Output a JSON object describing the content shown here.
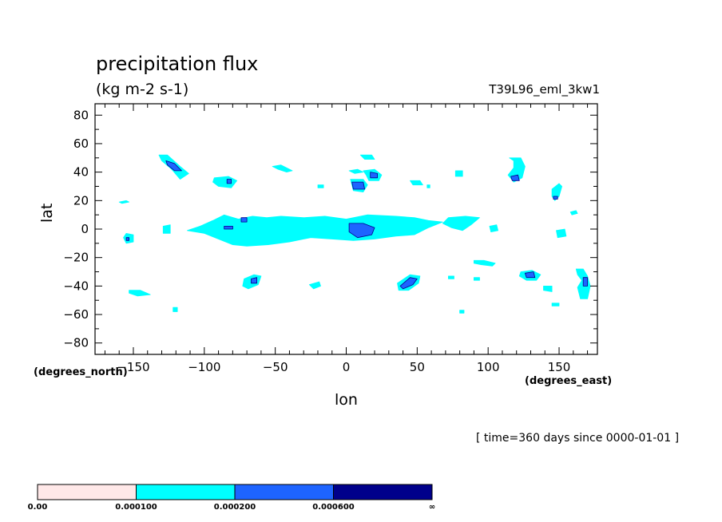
{
  "figure": {
    "title": "precipitation flux",
    "units": "(kg m-2 s-1)",
    "run_label": "T39L96_eml_3kw1",
    "time_label": "[ time=360 days since 0000-01-01 ]",
    "x_coord_name": "(degrees_east)",
    "y_coord_name": "(degrees_north)",
    "colors": {
      "background": "#ffffff",
      "axis": "#000000"
    }
  },
  "chart_data": {
    "type": "heatmap",
    "title": "precipitation flux",
    "subtitle": "(kg m-2 s-1)",
    "xlabel": "lon",
    "ylabel": "lat",
    "xlim": [
      -177,
      177
    ],
    "ylim": [
      -88,
      88
    ],
    "x_ticks": [
      -150,
      -100,
      -50,
      0,
      50,
      100,
      150
    ],
    "x_tick_labels": [
      "−150",
      "−100",
      "−50",
      "0",
      "50",
      "100",
      "150"
    ],
    "y_ticks": [
      80,
      60,
      40,
      20,
      0,
      -20,
      -40,
      -60,
      -80
    ],
    "y_tick_labels": [
      "80",
      "60",
      "40",
      "20",
      "0",
      "−20",
      "−40",
      "−60",
      "−80"
    ],
    "grid": false,
    "colorbar": {
      "levels": [
        0.0,
        0.0001,
        0.0002,
        0.0006
      ],
      "labels": [
        "0.00",
        "0.000100",
        "0.000200",
        "0.000600",
        "∞"
      ],
      "colors": [
        "#ffe8e8",
        "#00ffff",
        "#1e64ff",
        "#00008b"
      ]
    },
    "regions_level1": [
      {
        "name": "pacific-west-blob",
        "points": [
          [
            -155,
            -3
          ],
          [
            -150,
            -4
          ],
          [
            -150,
            -9
          ],
          [
            -155,
            -10
          ],
          [
            -157,
            -6
          ]
        ]
      },
      {
        "name": "hawaii-streak",
        "points": [
          [
            -160,
            19
          ],
          [
            -155,
            20
          ],
          [
            -153,
            19
          ],
          [
            -158,
            18
          ]
        ]
      },
      {
        "name": "central-pacific-spot",
        "points": [
          [
            -129,
            2
          ],
          [
            -124,
            3
          ],
          [
            -124,
            -3
          ],
          [
            -129,
            -3
          ]
        ]
      },
      {
        "name": "north-pacific-storm",
        "points": [
          [
            -132,
            52
          ],
          [
            -126,
            52
          ],
          [
            -117,
            44
          ],
          [
            -111,
            39
          ],
          [
            -117,
            35
          ],
          [
            -123,
            42
          ],
          [
            -130,
            48
          ]
        ]
      },
      {
        "name": "south-pacific-streak",
        "points": [
          [
            -153,
            -43
          ],
          [
            -145,
            -43
          ],
          [
            -138,
            -46
          ],
          [
            -147,
            -47
          ],
          [
            -153,
            -45
          ]
        ]
      },
      {
        "name": "south-pacific-dot",
        "points": [
          [
            -122,
            -55
          ],
          [
            -119,
            -55
          ],
          [
            -119,
            -58
          ],
          [
            -122,
            -58
          ]
        ]
      },
      {
        "name": "north-america-ring",
        "points": [
          [
            -93,
            36
          ],
          [
            -83,
            37
          ],
          [
            -77,
            34
          ],
          [
            -81,
            29
          ],
          [
            -90,
            30
          ],
          [
            -94,
            33
          ]
        ]
      },
      {
        "name": "south-america-ring",
        "points": [
          [
            -72,
            -35
          ],
          [
            -65,
            -32
          ],
          [
            -60,
            -33
          ],
          [
            -62,
            -39
          ],
          [
            -69,
            -42
          ],
          [
            -73,
            -40
          ]
        ]
      },
      {
        "name": "south-atlantic-west",
        "points": [
          [
            -26,
            -39
          ],
          [
            -19,
            -37
          ],
          [
            -18,
            -40
          ],
          [
            -23,
            -42
          ]
        ]
      },
      {
        "name": "north-atlantic-streak",
        "points": [
          [
            -52,
            44
          ],
          [
            -46,
            45
          ],
          [
            -38,
            41
          ],
          [
            -42,
            40
          ],
          [
            -48,
            42
          ]
        ]
      },
      {
        "name": "atlantic-dot",
        "points": [
          [
            -20,
            31
          ],
          [
            -16,
            31
          ],
          [
            -16,
            29
          ],
          [
            -20,
            29
          ]
        ]
      },
      {
        "name": "equatorial-band",
        "points": [
          [
            -112,
            -1
          ],
          [
            -103,
            2
          ],
          [
            -94,
            6
          ],
          [
            -86,
            10
          ],
          [
            -76,
            7
          ],
          [
            -66,
            9
          ],
          [
            -56,
            8
          ],
          [
            -46,
            9
          ],
          [
            -30,
            8
          ],
          [
            -15,
            9
          ],
          [
            0,
            7
          ],
          [
            15,
            10
          ],
          [
            35,
            9
          ],
          [
            48,
            8
          ],
          [
            58,
            6
          ],
          [
            68,
            5
          ],
          [
            58,
            1
          ],
          [
            48,
            -4
          ],
          [
            35,
            -5
          ],
          [
            20,
            -7
          ],
          [
            5,
            -8
          ],
          [
            -10,
            -7
          ],
          [
            -25,
            -6
          ],
          [
            -40,
            -9
          ],
          [
            -55,
            -11
          ],
          [
            -70,
            -12
          ],
          [
            -80,
            -11
          ],
          [
            -90,
            -7
          ],
          [
            -100,
            -3
          ]
        ]
      },
      {
        "name": "indian-band",
        "points": [
          [
            72,
            8
          ],
          [
            84,
            9
          ],
          [
            94,
            8
          ],
          [
            88,
            3
          ],
          [
            82,
            -1
          ],
          [
            74,
            1
          ],
          [
            68,
            4
          ]
        ]
      },
      {
        "name": "indian-east",
        "points": [
          [
            101,
            2
          ],
          [
            106,
            3
          ],
          [
            107,
            -1
          ],
          [
            102,
            -2
          ]
        ]
      },
      {
        "name": "europe-spot",
        "points": [
          [
            10,
            52
          ],
          [
            18,
            52
          ],
          [
            20,
            49
          ],
          [
            13,
            49
          ]
        ]
      },
      {
        "name": "europe-ring-a",
        "points": [
          [
            2,
            41
          ],
          [
            8,
            42
          ],
          [
            12,
            40
          ],
          [
            6,
            39
          ]
        ]
      },
      {
        "name": "europe-ring-b",
        "points": [
          [
            12,
            41
          ],
          [
            20,
            42
          ],
          [
            25,
            38
          ],
          [
            23,
            34
          ],
          [
            16,
            34
          ],
          [
            14,
            38
          ]
        ]
      },
      {
        "name": "mediterranean-ring",
        "points": [
          [
            3,
            35
          ],
          [
            12,
            35
          ],
          [
            15,
            31
          ],
          [
            12,
            26
          ],
          [
            5,
            27
          ]
        ]
      },
      {
        "name": "arabian-spot",
        "points": [
          [
            45,
            34
          ],
          [
            52,
            34
          ],
          [
            54,
            31
          ],
          [
            47,
            31
          ]
        ]
      },
      {
        "name": "arabian-dot",
        "points": [
          [
            57,
            31
          ],
          [
            59,
            31
          ],
          [
            59,
            29
          ],
          [
            57,
            29
          ]
        ]
      },
      {
        "name": "central-asia-dot",
        "points": [
          [
            77,
            41
          ],
          [
            82,
            41
          ],
          [
            82,
            37
          ],
          [
            77,
            37
          ]
        ]
      },
      {
        "name": "east-asia-hook",
        "points": [
          [
            115,
            50
          ],
          [
            123,
            50
          ],
          [
            126,
            44
          ],
          [
            124,
            36
          ],
          [
            118,
            33
          ],
          [
            114,
            38
          ],
          [
            118,
            43
          ],
          [
            118,
            48
          ]
        ]
      },
      {
        "name": "north-pacific-east-hook",
        "points": [
          [
            145,
            28
          ],
          [
            150,
            32
          ],
          [
            152,
            30
          ],
          [
            150,
            23
          ],
          [
            147,
            20
          ],
          [
            145,
            23
          ]
        ]
      },
      {
        "name": "maritime-dot",
        "points": [
          [
            158,
            12
          ],
          [
            162,
            13
          ],
          [
            163,
            11
          ],
          [
            159,
            10
          ]
        ]
      },
      {
        "name": "south-pacific-east-hook",
        "points": [
          [
            162,
            -28
          ],
          [
            167,
            -28
          ],
          [
            170,
            -33
          ],
          [
            172,
            -40
          ],
          [
            170,
            -49
          ],
          [
            165,
            -49
          ],
          [
            163,
            -41
          ],
          [
            166,
            -36
          ],
          [
            163,
            -32
          ]
        ]
      },
      {
        "name": "australia-ring",
        "points": [
          [
            123,
            -30
          ],
          [
            131,
            -29
          ],
          [
            137,
            -32
          ],
          [
            134,
            -36
          ],
          [
            127,
            -36
          ],
          [
            122,
            -33
          ]
        ]
      },
      {
        "name": "south-indian-streak",
        "points": [
          [
            90,
            -22
          ],
          [
            97,
            -22
          ],
          [
            105,
            -24
          ],
          [
            103,
            -26
          ],
          [
            95,
            -25
          ],
          [
            90,
            -24
          ]
        ]
      },
      {
        "name": "south-indian-dot",
        "points": [
          [
            90,
            -34
          ],
          [
            94,
            -34
          ],
          [
            94,
            -36
          ],
          [
            90,
            -36
          ]
        ]
      },
      {
        "name": "tasman-spot",
        "points": [
          [
            139,
            -40
          ],
          [
            145,
            -40
          ],
          [
            145,
            -44
          ],
          [
            139,
            -43
          ]
        ]
      },
      {
        "name": "south-atlantic-ring",
        "points": [
          [
            36,
            -38
          ],
          [
            45,
            -32
          ],
          [
            52,
            -33
          ],
          [
            51,
            -38
          ],
          [
            44,
            -43
          ],
          [
            37,
            -43
          ]
        ]
      },
      {
        "name": "south-atlantic-dot",
        "points": [
          [
            72,
            -33
          ],
          [
            76,
            -33
          ],
          [
            76,
            -35
          ],
          [
            72,
            -35
          ]
        ]
      },
      {
        "name": "southern-dot",
        "points": [
          [
            80,
            -57
          ],
          [
            83,
            -57
          ],
          [
            83,
            -59
          ],
          [
            80,
            -59
          ]
        ]
      },
      {
        "name": "west-pacific-dot",
        "points": [
          [
            148,
            -1
          ],
          [
            154,
            0
          ],
          [
            155,
            -5
          ],
          [
            149,
            -6
          ]
        ]
      },
      {
        "name": "east-pacific-dot",
        "points": [
          [
            145,
            -52
          ],
          [
            150,
            -52
          ],
          [
            150,
            -54
          ],
          [
            145,
            -54
          ]
        ]
      }
    ],
    "regions_level2": [
      {
        "name": "pacific-west-core",
        "points": [
          [
            -155,
            -6
          ],
          [
            -153,
            -6
          ],
          [
            -153,
            -8
          ],
          [
            -155,
            -8
          ]
        ]
      },
      {
        "name": "north-pacific-core",
        "points": [
          [
            -127,
            48
          ],
          [
            -121,
            46
          ],
          [
            -116,
            41
          ],
          [
            -121,
            41
          ],
          [
            -126,
            45
          ]
        ]
      },
      {
        "name": "north-america-core",
        "points": [
          [
            -84,
            35
          ],
          [
            -81,
            35
          ],
          [
            -81,
            32
          ],
          [
            -84,
            32
          ]
        ]
      },
      {
        "name": "south-america-core",
        "points": [
          [
            -67,
            -35
          ],
          [
            -63,
            -34
          ],
          [
            -63,
            -38
          ],
          [
            -67,
            -38
          ]
        ]
      },
      {
        "name": "equatorial-core-a",
        "points": [
          [
            -86,
            2
          ],
          [
            -80,
            2
          ],
          [
            -80,
            0
          ],
          [
            -86,
            0
          ]
        ]
      },
      {
        "name": "equatorial-core-b",
        "points": [
          [
            -74,
            8
          ],
          [
            -70,
            8
          ],
          [
            -70,
            5
          ],
          [
            -74,
            5
          ]
        ]
      },
      {
        "name": "equatorial-core-c",
        "points": [
          [
            2,
            4
          ],
          [
            12,
            4
          ],
          [
            20,
            1
          ],
          [
            18,
            -4
          ],
          [
            8,
            -6
          ],
          [
            2,
            -2
          ]
        ]
      },
      {
        "name": "mediterranean-core",
        "points": [
          [
            4,
            33
          ],
          [
            12,
            33
          ],
          [
            13,
            28
          ],
          [
            5,
            28
          ]
        ]
      },
      {
        "name": "europe-core",
        "points": [
          [
            17,
            40
          ],
          [
            22,
            39
          ],
          [
            22,
            36
          ],
          [
            17,
            36
          ]
        ]
      },
      {
        "name": "east-asia-core",
        "points": [
          [
            116,
            37
          ],
          [
            121,
            38
          ],
          [
            122,
            34
          ],
          [
            117,
            34
          ]
        ]
      },
      {
        "name": "south-pacific-east-core",
        "points": [
          [
            167,
            -34
          ],
          [
            170,
            -34
          ],
          [
            170,
            -40
          ],
          [
            167,
            -40
          ]
        ]
      },
      {
        "name": "australia-core",
        "points": [
          [
            126,
            -31
          ],
          [
            132,
            -30
          ],
          [
            133,
            -34
          ],
          [
            127,
            -34
          ]
        ]
      },
      {
        "name": "south-atlantic-core",
        "points": [
          [
            38,
            -40
          ],
          [
            45,
            -34
          ],
          [
            50,
            -35
          ],
          [
            47,
            -39
          ],
          [
            40,
            -42
          ]
        ]
      },
      {
        "name": "pacific-east-core",
        "points": [
          [
            146,
            23
          ],
          [
            149,
            23
          ],
          [
            149,
            21
          ],
          [
            146,
            21
          ]
        ]
      }
    ]
  }
}
